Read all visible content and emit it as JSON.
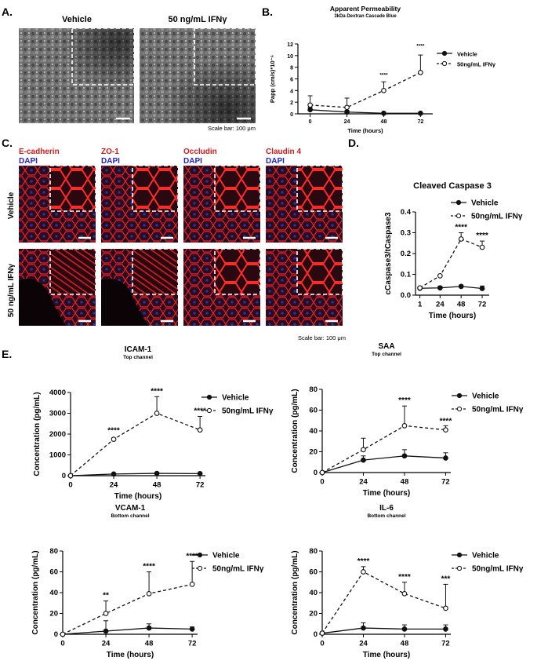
{
  "colors": {
    "micro_dark": "#3a3a3a",
    "micro_light": "#9a9a9a",
    "confocal_bg": "#2a0c1c",
    "confocal_red": "#e4202a",
    "confocal_blue": "#2630b8",
    "label_red": "#d11a1a",
    "label_blue": "#1f1fc8",
    "series_line": "#111111"
  },
  "panel_letters": {
    "a": "A.",
    "b": "B.",
    "c": "C.",
    "d": "D.",
    "e": "E."
  },
  "panel_a": {
    "titles": [
      "Vehicle",
      "50 ng/mL IFNγ"
    ],
    "scale_bar": "Scale bar: 100 μm"
  },
  "panel_c": {
    "stain_labels": [
      "E-cadherin",
      "ZO-1",
      "Occludin",
      "Claudin 4"
    ],
    "dapi_label": "DAPI",
    "row_labels": [
      "Vehicle",
      "50 ng/mL IFNγ"
    ],
    "scale_bar": "Scale bar: 100 μm"
  },
  "chart_data": [
    {
      "id": "B",
      "type": "line",
      "title": "Apparent Permeability",
      "subtitle": "3kDa Dextran Cascade Blue",
      "xlabel": "Time (hours)",
      "ylabel": "Papp (cm/s)*10⁻⁶",
      "x": [
        0,
        24,
        48,
        72
      ],
      "xticks": [
        "0",
        "24",
        "48",
        "72"
      ],
      "xlim": [
        -8,
        80
      ],
      "ylim": [
        0,
        12
      ],
      "yticks": [
        0,
        2,
        4,
        6,
        8,
        10,
        12
      ],
      "legend": "right",
      "series": [
        {
          "name": "Vehicle",
          "style": "solid-filled",
          "values": [
            0.7,
            0.3,
            0.1,
            0.1
          ],
          "err": [
            0.4,
            0.3,
            0.1,
            0.1
          ]
        },
        {
          "name": "50ng/mL IFNγ",
          "style": "dashed-open",
          "values": [
            1.5,
            1.1,
            4.0,
            7.1
          ],
          "err": [
            1.6,
            1.6,
            1.5,
            3.0
          ]
        }
      ],
      "annotations": [
        {
          "x": 48,
          "y": 6.4,
          "text": "****"
        },
        {
          "x": 72,
          "y": 11.4,
          "text": "****"
        }
      ]
    },
    {
      "id": "D",
      "type": "line",
      "title": "Cleaved Caspase 3",
      "subtitle": "",
      "xlabel": "Time (hours)",
      "ylabel": "cCaspase3/tCaspase3",
      "x": [
        1,
        24,
        48,
        72
      ],
      "xticks": [
        "1",
        "24",
        "48",
        "72"
      ],
      "xlim": [
        -4,
        80
      ],
      "ylim": [
        0,
        0.4
      ],
      "yticks": [
        0.0,
        0.1,
        0.2,
        0.3,
        0.4
      ],
      "legend": "top-right",
      "series": [
        {
          "name": "Vehicle",
          "style": "solid-filled",
          "values": [
            0.033,
            0.035,
            0.042,
            0.032
          ],
          "err": [
            0.005,
            0.008,
            0.006,
            0.012
          ]
        },
        {
          "name": "50ng/mL IFNγ",
          "style": "dashed-open",
          "values": [
            0.035,
            0.093,
            0.27,
            0.23
          ],
          "err": [
            0.004,
            0.004,
            0.03,
            0.03
          ]
        }
      ],
      "annotations": [
        {
          "x": 48,
          "y": 0.315,
          "text": "****"
        },
        {
          "x": 72,
          "y": 0.275,
          "text": "****"
        }
      ]
    },
    {
      "id": "ICAM",
      "type": "line",
      "title": "ICAM-1",
      "subtitle": "Top channel",
      "xlabel": "Time (hours)",
      "ylabel": "Concentration (pg/mL)",
      "x": [
        0,
        24,
        48,
        72
      ],
      "xticks": [
        "0",
        "24",
        "48",
        "72"
      ],
      "xlim": [
        0,
        75
      ],
      "ylim": [
        0,
        4000
      ],
      "yticks": [
        0,
        1000,
        2000,
        3000,
        4000
      ],
      "legend": "right",
      "series": [
        {
          "name": "Vehicle",
          "style": "solid-filled",
          "values": [
            0,
            80,
            110,
            100
          ],
          "err": [
            0,
            30,
            40,
            30
          ]
        },
        {
          "name": "50ng/mL IFNγ",
          "style": "dashed-open",
          "values": [
            0,
            1750,
            3000,
            2200
          ],
          "err": [
            0,
            60,
            800,
            650
          ]
        }
      ],
      "annotations": [
        {
          "x": 24,
          "y": 2050,
          "text": "****"
        },
        {
          "x": 48,
          "y": 3950,
          "text": "****"
        },
        {
          "x": 72,
          "y": 3000,
          "text": "****"
        }
      ]
    },
    {
      "id": "SAA",
      "type": "line",
      "title": "SAA",
      "subtitle": "Top channel",
      "xlabel": "Time (hours)",
      "ylabel": "Concentration (pg/mL)",
      "x": [
        0,
        24,
        48,
        72
      ],
      "xticks": [
        "0",
        "24",
        "48",
        "72"
      ],
      "xlim": [
        0,
        75
      ],
      "ylim": [
        0,
        80
      ],
      "yticks": [
        0,
        20,
        40,
        60,
        80
      ],
      "legend": "right",
      "series": [
        {
          "name": "Vehicle",
          "style": "solid-filled",
          "values": [
            0,
            12,
            16,
            14
          ],
          "err": [
            0,
            4,
            6,
            5
          ]
        },
        {
          "name": "50ng/mL IFNγ",
          "style": "dashed-open",
          "values": [
            0,
            22,
            45,
            41
          ],
          "err": [
            0,
            11,
            19,
            4
          ]
        }
      ],
      "annotations": [
        {
          "x": 48,
          "y": 67,
          "text": "****"
        },
        {
          "x": 72,
          "y": 47,
          "text": "****"
        }
      ]
    },
    {
      "id": "VCAM",
      "type": "line",
      "title": "VCAM-1",
      "subtitle": "Bottom channel",
      "xlabel": "Time (hours)",
      "ylabel": "Concentration (pg/mL)",
      "x": [
        0,
        24,
        48,
        72
      ],
      "xticks": [
        "0",
        "24",
        "48",
        "72"
      ],
      "xlim": [
        0,
        75
      ],
      "ylim": [
        0,
        80
      ],
      "yticks": [
        0,
        20,
        40,
        60,
        80
      ],
      "legend": "right",
      "series": [
        {
          "name": "Vehicle",
          "style": "solid-filled",
          "values": [
            0,
            3,
            6,
            5
          ],
          "err": [
            0,
            10,
            4,
            2
          ]
        },
        {
          "name": "50ng/mL IFNγ",
          "style": "dashed-open",
          "values": [
            0,
            20,
            39,
            48
          ],
          "err": [
            0,
            12,
            21,
            22
          ]
        }
      ],
      "annotations": [
        {
          "x": 24,
          "y": 35,
          "text": "**"
        },
        {
          "x": 48,
          "y": 63,
          "text": "****"
        },
        {
          "x": 72,
          "y": 73,
          "text": "****"
        }
      ]
    },
    {
      "id": "IL6",
      "type": "line",
      "title": "IL-6",
      "subtitle": "Bottom channel",
      "xlabel": "Time (hours)",
      "ylabel": "Concentration (pg/mL)",
      "x": [
        0,
        24,
        48,
        72
      ],
      "xticks": [
        "0",
        "24",
        "48",
        "72"
      ],
      "xlim": [
        0,
        75
      ],
      "ylim": [
        0,
        80
      ],
      "yticks": [
        0,
        20,
        40,
        60,
        80
      ],
      "legend": "right",
      "series": [
        {
          "name": "Vehicle",
          "style": "solid-filled",
          "values": [
            1,
            6,
            5,
            5
          ],
          "err": [
            0,
            5,
            4,
            4
          ]
        },
        {
          "name": "50ng/mL IFNγ",
          "style": "dashed-open",
          "values": [
            1,
            60,
            39,
            25
          ],
          "err": [
            0,
            5,
            11,
            23
          ]
        }
      ],
      "annotations": [
        {
          "x": 24,
          "y": 68,
          "text": "****"
        },
        {
          "x": 48,
          "y": 53,
          "text": "****"
        },
        {
          "x": 72,
          "y": 51,
          "text": "***"
        }
      ]
    }
  ]
}
